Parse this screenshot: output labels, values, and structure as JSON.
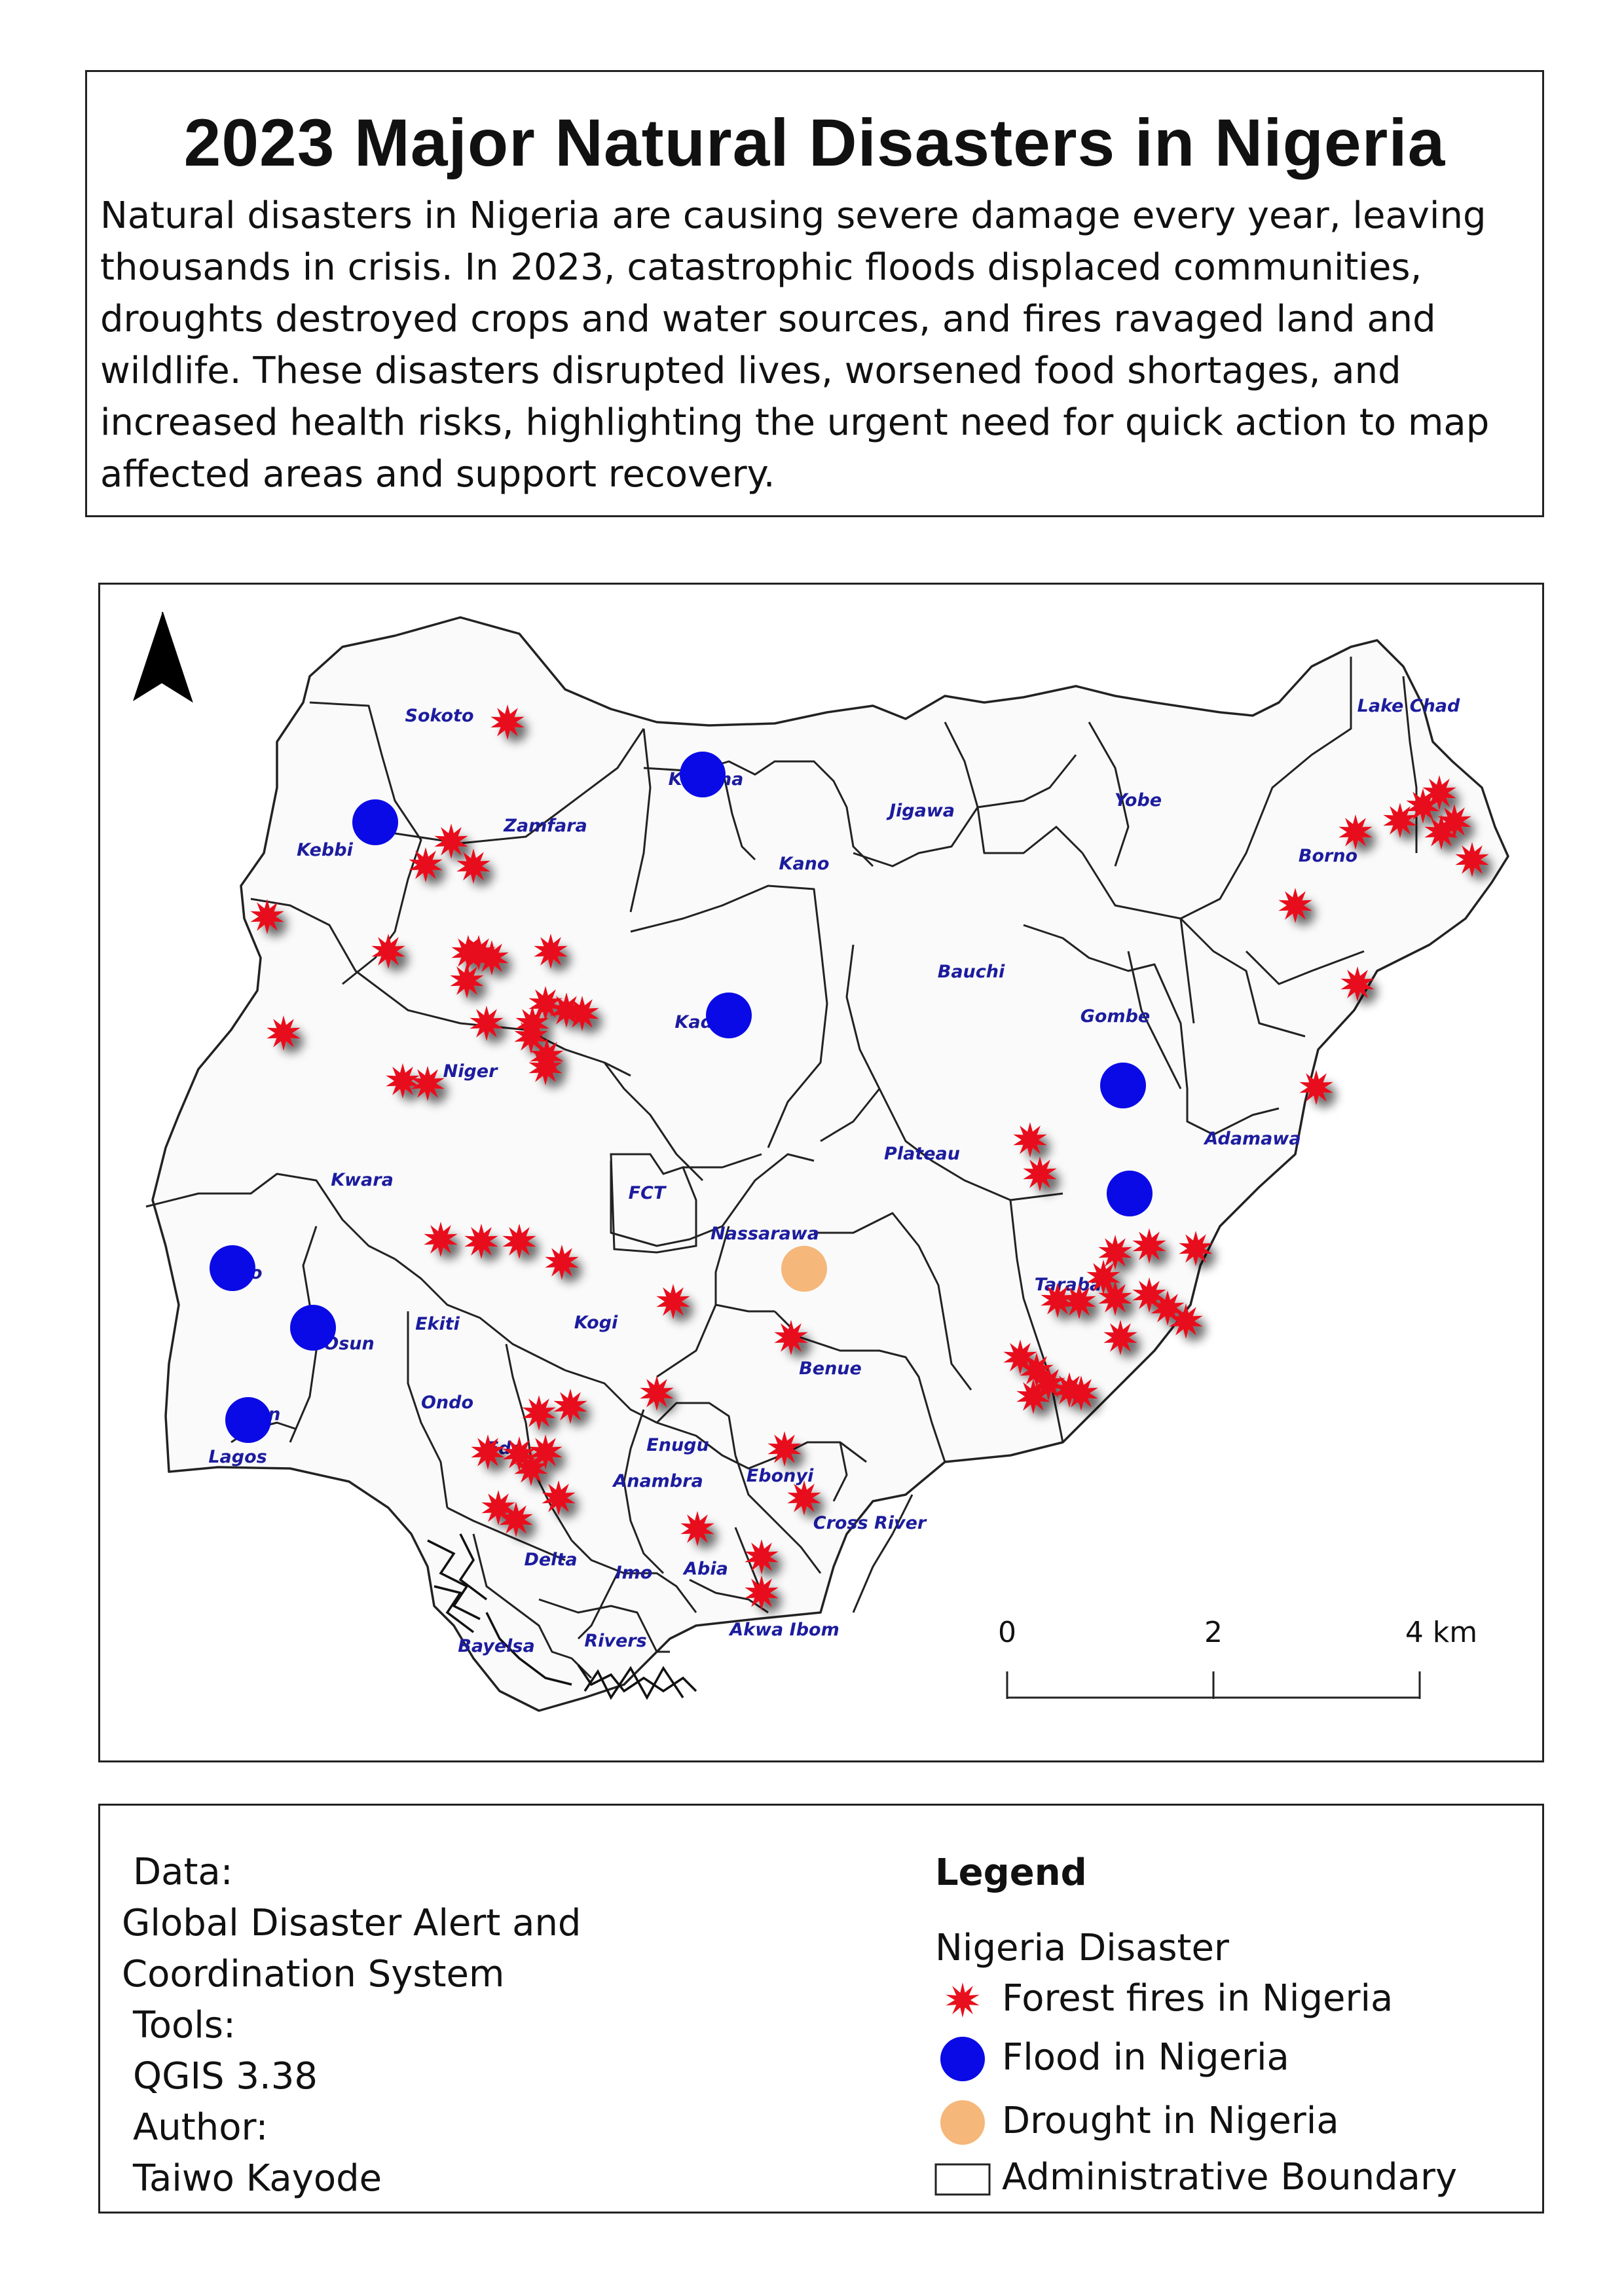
{
  "header": {
    "title": "2023 Major Natural Disasters in Nigeria",
    "intro": "Natural disasters in Nigeria are causing severe damage every year, leaving thousands in crisis. In 2023, catastrophic floods displaced communities, droughts destroyed crops and water sources, and fires ravaged land and wildlife. These disasters disrupted lives, worsened food shortages, and increased health risks, highlighting the urgent need for quick action to map affected areas and support recovery."
  },
  "map": {
    "north_arrow": "north-arrow-icon",
    "state_labels": [
      "Sokoto",
      "Katsina",
      "Kebbi",
      "Zamfara",
      "Jigawa",
      "Yobe",
      "Lake Chad",
      "Borno",
      "Kano",
      "Bauchi",
      "Gombe",
      "Kaduna",
      "Niger",
      "Adamawa",
      "Plateau",
      "Kwara",
      "FCT",
      "Nassarawa",
      "Oyo",
      "Taraba",
      "Osun",
      "Ekiti",
      "Kogi",
      "Benue",
      "Ondo",
      "Ogun",
      "Lagos",
      "Edo",
      "Enugu",
      "Anambra",
      "Ebonyi",
      "Cross River",
      "Delta",
      "Imo",
      "Abia",
      "Bayelsa",
      "Rivers",
      "Akwa Ibom"
    ],
    "scale_bar": {
      "ticks": [
        "0",
        "2",
        "4 km"
      ]
    },
    "colors": {
      "fire": "#e8101c",
      "flood": "#0a0ae6",
      "drought": "#f5b77a",
      "label": "#1c1c9e",
      "boundary": "#222222",
      "land": "#fafafa"
    },
    "fire_count": 64,
    "flood_count": 8,
    "drought_count": 1
  },
  "credits": {
    "data_heading": "Data:",
    "data_line1": "Global Disaster Alert and",
    "data_line2": "Coordination System",
    "tools_heading": "Tools:",
    "tools_value": "QGIS 3.38",
    "author_heading": "Author:",
    "author_value": "Taiwo Kayode"
  },
  "legend": {
    "title": "Legend",
    "layer": "Nigeria Disaster",
    "items": [
      {
        "label": "Forest fires in Nigeria",
        "icon": "forest-fire-icon"
      },
      {
        "label": "Flood in Nigeria",
        "icon": "flood-icon"
      },
      {
        "label": "Drought in Nigeria",
        "icon": "drought-icon"
      },
      {
        "label": "Administrative Boundary",
        "icon": "boundary-icon"
      }
    ]
  }
}
